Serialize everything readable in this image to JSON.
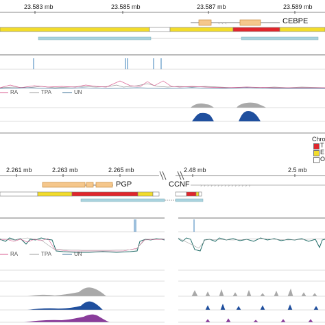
{
  "top_panel": {
    "ticks": [
      "23.583 mb",
      "23.585 mb",
      "23.587 mb",
      "23.589 mb"
    ],
    "gene": "CEBPE"
  },
  "legend_lines": [
    "RA",
    "TPA",
    "UN"
  ],
  "bottom_left_panel": {
    "ticks": [
      "2.261 mb",
      "2.263 mb",
      "2.265 mb"
    ],
    "gene": "PGP"
  },
  "bottom_right_panel": {
    "ticks": [
      "2.48 mb",
      "2.5 mb"
    ],
    "gene": "CCNF"
  },
  "chromatin_legend": {
    "title": "Chro",
    "items": [
      {
        "label": "T",
        "color": "#e0262c"
      },
      {
        "label": "E",
        "color": "#f2dc2b"
      },
      {
        "label": "O",
        "color": "#ffffff"
      }
    ]
  },
  "colors": {
    "state_red": "#e0262c",
    "state_yellow": "#f2dc2b",
    "gene_body": "#f5c78c",
    "enhancer_bar": "#a9d3de",
    "ra_line": "#d85b8f",
    "tpa_line": "#9c9c9c",
    "un_line": "#3a6f96",
    "signal_gray": "#a9a9a9",
    "signal_blue": "#1f4f9e",
    "signal_purple": "#8a3d9b"
  }
}
